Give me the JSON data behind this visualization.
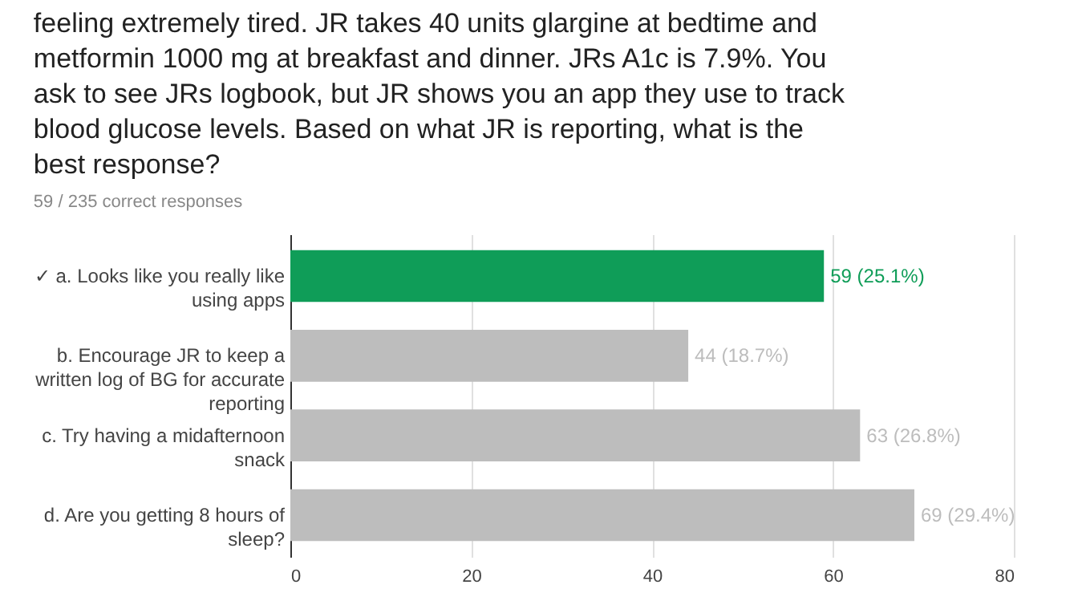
{
  "chart_data": {
    "type": "bar",
    "orientation": "horizontal",
    "title": "feeling extremely tired. JR takes 40 units glargine at bedtime and metformin 1000 mg at breakfast and dinner. JRs A1c is 7.9%. You ask to see JRs logbook, but JR shows you an app they use to track blood glucose levels. Based on what JR is reporting, what is the best response?",
    "subtitle": "59 / 235 correct responses",
    "categories": [
      "✓ a. Looks like you really like using apps",
      "b. Encourage JR to keep a written log of BG for accurate reporting",
      "c. Try having a midafternoon snack",
      "d. Are you getting 8 hours of sleep?"
    ],
    "values": [
      59,
      44,
      63,
      69
    ],
    "colors": [
      "#0f9d58",
      "#bdbdbd",
      "#bdbdbd",
      "#bdbdbd"
    ],
    "value_labels": [
      "59 (25.1%)",
      "44 (18.7%)",
      "63 (26.8%)",
      "69 (29.4%)"
    ],
    "xlim": [
      0,
      80
    ],
    "xticks": [
      0,
      20,
      40,
      60,
      80
    ],
    "grid": "x",
    "legend": false
  }
}
